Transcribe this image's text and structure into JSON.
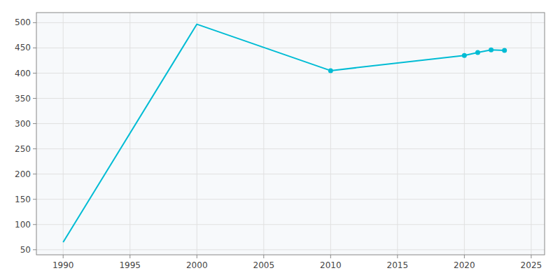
{
  "chart_data": {
    "type": "line",
    "series": [
      {
        "type": "line",
        "marker": "none",
        "color": "#00BCD4",
        "x": [
          1990,
          2000,
          2010,
          2020,
          2021,
          2022,
          2023
        ],
        "values": [
          65,
          497,
          405,
          435,
          441,
          446,
          445
        ]
      },
      {
        "type": "scatter",
        "marker": "circle",
        "color": "#00BCD4",
        "x": [
          2010,
          2020,
          2021,
          2022,
          2023
        ],
        "values": [
          405,
          435,
          441,
          446,
          445
        ]
      }
    ],
    "xlim": [
      1988,
      2026
    ],
    "ylim": [
      40,
      520
    ],
    "xticks": [
      1990,
      1995,
      2000,
      2005,
      2010,
      2015,
      2020,
      2025
    ],
    "yticks": [
      50,
      100,
      150,
      200,
      250,
      300,
      350,
      400,
      450,
      500
    ],
    "grid": true
  }
}
